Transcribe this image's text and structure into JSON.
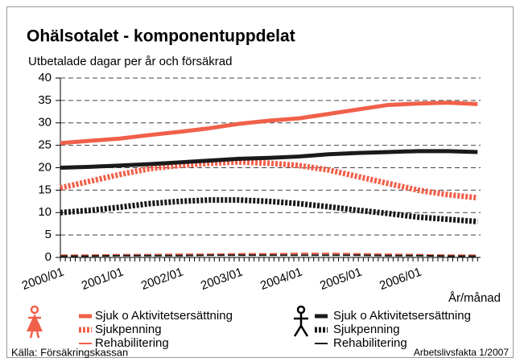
{
  "chart_data": {
    "type": "line",
    "title": "Ohälsotalet - komponentuppdelat",
    "subtitle": "Utbetalade dagar per år och försäkrad",
    "x_label": "År/månad",
    "source": "Källa: Försäkringskassan",
    "credit": "Arbetslivsfakta 1/2007",
    "categories": [
      "2000/01",
      null,
      "2001/01",
      null,
      "2002/01",
      null,
      "2003/01",
      null,
      "2004/01",
      null,
      "2005/01",
      null,
      "2006/01",
      null,
      null
    ],
    "ylim": [
      0,
      40
    ],
    "yticks": [
      0,
      5,
      10,
      15,
      20,
      25,
      30,
      35,
      40
    ],
    "grid": true,
    "series": [
      {
        "name": "Sjuk o Aktivitetsersättning",
        "color": "#f0604a",
        "style": "solid",
        "values": [
          25.5,
          26,
          26.5,
          27.3,
          28,
          28.8,
          29.8,
          30.5,
          31,
          32,
          33,
          34,
          34.3,
          34.5,
          34.2
        ]
      },
      {
        "name": "Sjukpenning",
        "color": "#f0604a",
        "style": "dotted",
        "values": [
          15.5,
          17,
          18.5,
          19.8,
          20.5,
          21,
          21.3,
          21,
          20.5,
          19.5,
          18,
          16.5,
          15,
          14,
          13.3
        ]
      },
      {
        "name": "Rehabilitering",
        "color": "#f0604a",
        "style": "dashed",
        "values": [
          0.5,
          0.5,
          0.6,
          0.6,
          0.7,
          0.7,
          0.8,
          0.8,
          0.9,
          0.9,
          0.8,
          0.7,
          0.6,
          0.5,
          0.5
        ]
      },
      {
        "name": "Sjuk o Aktivitetsersättning",
        "color": "#1a1a1a",
        "style": "solid",
        "values": [
          20,
          20.2,
          20.5,
          20.8,
          21.2,
          21.6,
          22,
          22.2,
          22.5,
          23,
          23.3,
          23.5,
          23.7,
          23.7,
          23.5
        ]
      },
      {
        "name": "Sjukpenning",
        "color": "#1a1a1a",
        "style": "dotted",
        "values": [
          10,
          10.5,
          11.2,
          12,
          12.5,
          12.8,
          12.8,
          12.5,
          12,
          11.3,
          10.5,
          9.8,
          9,
          8.5,
          8
        ]
      },
      {
        "name": "Rehabilitering",
        "color": "#1a1a1a",
        "style": "dashed",
        "values": [
          0.3,
          0.3,
          0.4,
          0.4,
          0.4,
          0.5,
          0.5,
          0.5,
          0.5,
          0.5,
          0.5,
          0.4,
          0.4,
          0.3,
          0.3
        ]
      }
    ]
  }
}
